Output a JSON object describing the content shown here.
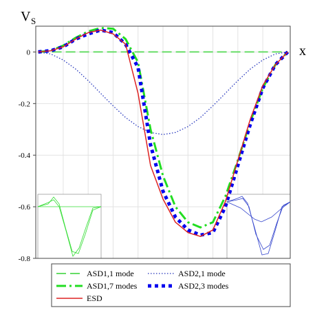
{
  "chart_data": {
    "type": "line",
    "y_label": "V",
    "y_label_subscript": "S",
    "x_label": "x",
    "x": [
      0,
      0.05,
      0.1,
      0.15,
      0.2,
      0.25,
      0.3,
      0.35,
      0.4,
      0.45,
      0.5,
      0.55,
      0.6,
      0.65,
      0.7,
      0.75,
      0.8,
      0.85,
      0.9,
      0.95,
      1
    ],
    "xlim": [
      -0.01,
      1.01
    ],
    "x_gridlines": [
      0.1,
      0.2,
      0.3,
      0.4,
      0.5,
      0.6,
      0.7,
      0.8,
      0.9
    ],
    "ylim": [
      -0.8,
      0.1
    ],
    "yticks": [
      0,
      -0.2,
      -0.4,
      -0.6,
      -0.8
    ],
    "grid": true,
    "series": [
      {
        "name": "ASD1,1 mode",
        "color": "#66dd66",
        "style": "dashed",
        "values": [
          0,
          0,
          0,
          0,
          0,
          0,
          0,
          0,
          0,
          0,
          0,
          0,
          0,
          0,
          0,
          0,
          0,
          0,
          0,
          0,
          0
        ]
      },
      {
        "name": "ASD2,1 mode",
        "color": "#2233bb",
        "style": "dotted",
        "values": [
          0,
          -0.008,
          -0.031,
          -0.066,
          -0.111,
          -0.16,
          -0.209,
          -0.254,
          -0.289,
          -0.312,
          -0.32,
          -0.312,
          -0.289,
          -0.254,
          -0.209,
          -0.16,
          -0.111,
          -0.066,
          -0.031,
          -0.008,
          0
        ]
      },
      {
        "name": "ASD1,7 modes",
        "color": "#22dd22",
        "style": "dashdot",
        "values": [
          0,
          0.005,
          0.025,
          0.055,
          0.08,
          0.093,
          0.09,
          0.05,
          -0.04,
          -0.3,
          -0.48,
          -0.6,
          -0.66,
          -0.68,
          -0.66,
          -0.56,
          -0.42,
          -0.27,
          -0.14,
          -0.05,
          0
        ]
      },
      {
        "name": "ASD2,3 modes",
        "color": "#0000ee",
        "style": "squares",
        "values": [
          0,
          0.005,
          0.02,
          0.05,
          0.07,
          0.085,
          0.075,
          0.03,
          -0.06,
          -0.36,
          -0.54,
          -0.64,
          -0.69,
          -0.71,
          -0.7,
          -0.6,
          -0.44,
          -0.28,
          -0.14,
          -0.05,
          0
        ]
      },
      {
        "name": "ESD",
        "color": "#dd2222",
        "style": "solid",
        "values": [
          0,
          0.005,
          0.02,
          0.05,
          0.075,
          0.085,
          0.07,
          0.03,
          -0.16,
          -0.44,
          -0.57,
          -0.66,
          -0.7,
          -0.715,
          -0.69,
          -0.58,
          -0.42,
          -0.26,
          -0.13,
          -0.05,
          0
        ]
      }
    ]
  }
}
